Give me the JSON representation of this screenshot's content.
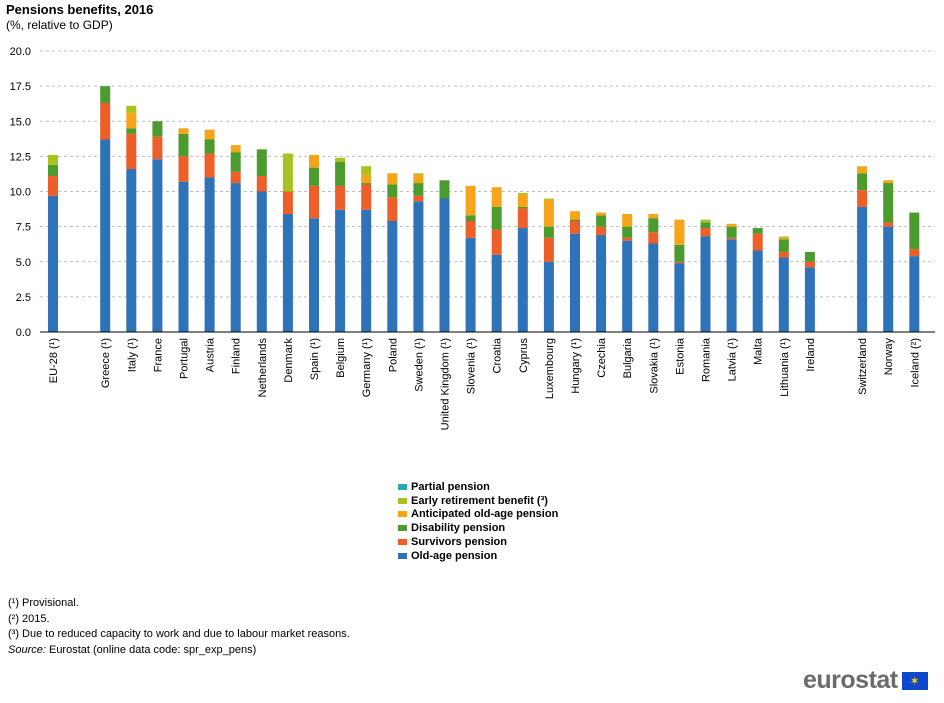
{
  "title": "Pensions benefits, 2016",
  "subtitle": "(%, relative to GDP)",
  "chart_data": {
    "type": "bar",
    "stacked": true,
    "title": "Pensions benefits, 2016",
    "subtitle": "(%, relative to GDP)",
    "ylim": [
      0,
      20
    ],
    "yticks": [
      "0.0",
      "2.5",
      "5.0",
      "7.5",
      "10.0",
      "12.5",
      "15.0",
      "17.5",
      "20.0"
    ],
    "grid": true,
    "categories": [
      "EU-28 (¹)",
      "Greece (¹)",
      "Italy (¹)",
      "France",
      "Portugal",
      "Austria",
      "Finland",
      "Netherlands",
      "Denmark",
      "Spain (¹)",
      "Belgium",
      "Germany (¹)",
      "Poland",
      "Sweden (¹)",
      "United Kingdom (¹)",
      "Slovenia (¹)",
      "Croatia",
      "Cyprus",
      "Luxembourg",
      "Hungary (¹)",
      "Czechia",
      "Bulgaria",
      "Slovakia (¹)",
      "Estonia",
      "Romania",
      "Latvia (¹)",
      "Malta",
      "Lithuania (¹)",
      "Ireland",
      "Switzerland",
      "Norway",
      "Iceland (²)"
    ],
    "series": [
      {
        "name": "Old-age pension",
        "color": "#2e73b8",
        "values": [
          9.7,
          13.7,
          11.6,
          12.3,
          10.7,
          11.0,
          10.6,
          10.0,
          8.4,
          8.1,
          8.7,
          8.7,
          7.9,
          9.3,
          9.5,
          6.7,
          5.5,
          7.4,
          5.0,
          7.0,
          6.9,
          6.5,
          6.3,
          4.9,
          6.8,
          6.6,
          5.8,
          5.3,
          4.6,
          8.9,
          7.5,
          5.4
        ]
      },
      {
        "name": "Survivors pension",
        "color": "#ee5e29",
        "values": [
          1.4,
          2.6,
          2.5,
          1.6,
          1.8,
          1.7,
          0.8,
          1.1,
          1.6,
          2.3,
          1.7,
          1.8,
          1.7,
          0.4,
          0.0,
          1.2,
          1.8,
          1.4,
          1.7,
          0.9,
          0.6,
          0.2,
          0.8,
          0.1,
          0.6,
          0.1,
          1.2,
          0.4,
          0.4,
          1.2,
          0.3,
          0.5
        ]
      },
      {
        "name": "Disability pension",
        "color": "#4c9b2f",
        "values": [
          0.8,
          1.2,
          0.4,
          1.1,
          1.6,
          1.0,
          1.4,
          1.9,
          0.0,
          1.3,
          1.7,
          0.1,
          0.9,
          0.9,
          1.3,
          0.4,
          1.6,
          0.1,
          0.8,
          0.1,
          0.8,
          0.8,
          1.0,
          1.2,
          0.4,
          0.8,
          0.4,
          0.9,
          0.7,
          1.2,
          2.8,
          2.6
        ]
      },
      {
        "name": "Anticipated old-age pension",
        "color": "#f6a51b",
        "values": [
          0.0,
          0.0,
          1.1,
          0.0,
          0.4,
          0.7,
          0.5,
          0.0,
          0.0,
          0.9,
          0.0,
          0.6,
          0.8,
          0.6,
          0.0,
          2.1,
          1.4,
          0.9,
          1.9,
          0.6,
          0.2,
          0.9,
          0.3,
          1.8,
          0.0,
          0.2,
          0.0,
          0.1,
          0.0,
          0.5,
          0.2,
          0.0
        ]
      },
      {
        "name": "Early retirement benefit (³)",
        "color": "#a9c221",
        "values": [
          0.7,
          0.0,
          0.5,
          0.0,
          0.0,
          0.0,
          0.0,
          0.0,
          2.7,
          0.0,
          0.3,
          0.6,
          0.0,
          0.1,
          0.0,
          0.0,
          0.0,
          0.1,
          0.1,
          0.0,
          0.0,
          0.0,
          0.0,
          0.0,
          0.2,
          0.0,
          0.0,
          0.1,
          0.0,
          0.0,
          0.0,
          0.0
        ]
      },
      {
        "name": "Partial pension",
        "color": "#2ba7b7",
        "values": [
          0.0,
          0.0,
          0.0,
          0.0,
          0.0,
          0.0,
          0.0,
          0.0,
          0.0,
          0.0,
          0.0,
          0.0,
          0.0,
          0.0,
          0.0,
          0.0,
          0.0,
          0.0,
          0.0,
          0.0,
          0.0,
          0.0,
          0.0,
          0.0,
          0.0,
          0.0,
          0.0,
          0.0,
          0.0,
          0.0,
          0.0,
          0.0
        ]
      }
    ],
    "legend": [
      "Partial pension",
      "Early retirement benefit (³)",
      "Anticipated old-age pension",
      "Disability pension",
      "Survivors pension",
      "Old-age pension"
    ],
    "legend_position": "bottom-center"
  },
  "notes": {
    "note1": "(¹) Provisional.",
    "note2": "(²) 2015.",
    "note3": "(³) Due to reduced capacity to work and due to labour market reasons.",
    "source_label": "Source:",
    "source_text": " Eurostat (online data code: spr_exp_pens)"
  },
  "logo": {
    "text": "eurostat",
    "icon": "eu-flag-icon"
  }
}
